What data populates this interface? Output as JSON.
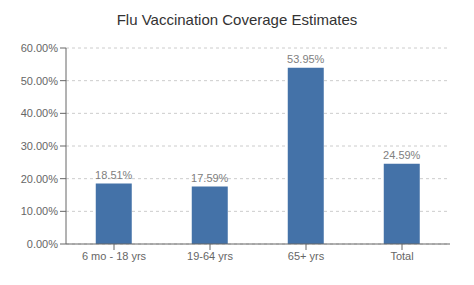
{
  "chart_data": {
    "type": "bar",
    "title": "Flu Vaccination Coverage Estimates",
    "categories": [
      "6 mo - 18 yrs",
      "19-64 yrs",
      "65+ yrs",
      "Total"
    ],
    "values": [
      18.51,
      17.59,
      53.95,
      24.59
    ],
    "value_labels": [
      "18.51%",
      "17.59%",
      "53.95%",
      "24.59%"
    ],
    "color": "#4472a8",
    "ylim": [
      0,
      60
    ],
    "yticks": [
      {
        "value": 0,
        "label": "0.00%"
      },
      {
        "value": 10,
        "label": "10.00%"
      },
      {
        "value": 20,
        "label": "20.00%"
      },
      {
        "value": 30,
        "label": "30.00%"
      },
      {
        "value": 40,
        "label": "40.00%"
      },
      {
        "value": 50,
        "label": "50.00%"
      },
      {
        "value": 60,
        "label": "60.00%"
      }
    ],
    "grid": true,
    "data_labels": true
  }
}
